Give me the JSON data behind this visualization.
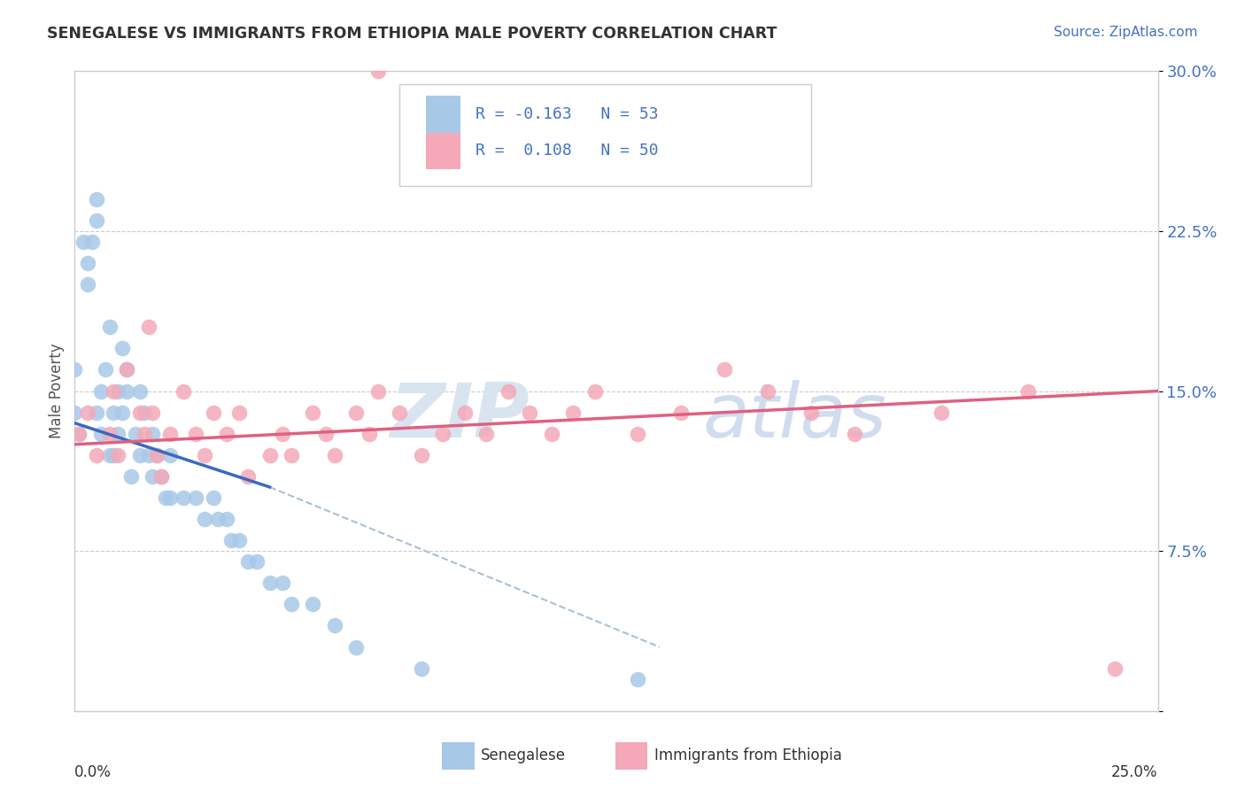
{
  "title": "SENEGALESE VS IMMIGRANTS FROM ETHIOPIA MALE POVERTY CORRELATION CHART",
  "source": "Source: ZipAtlas.com",
  "ylabel": "Male Poverty",
  "xmin": 0.0,
  "xmax": 25.0,
  "ymin": 0.0,
  "ymax": 30.0,
  "yticks": [
    0.0,
    7.5,
    15.0,
    22.5,
    30.0
  ],
  "ytick_labels": [
    "",
    "7.5%",
    "15.0%",
    "22.5%",
    "30.0%"
  ],
  "color_blue": "#a8c8e8",
  "color_pink": "#f4a8b8",
  "line_blue": "#3a6abf",
  "line_pink": "#e06080",
  "line_dashed_color": "#a8c0d8",
  "watermark_zip": "ZIP",
  "watermark_atlas": "atlas",
  "senegalese_x": [
    0.0,
    0.0,
    0.1,
    0.2,
    0.3,
    0.3,
    0.4,
    0.5,
    0.5,
    0.5,
    0.6,
    0.6,
    0.7,
    0.8,
    0.8,
    0.9,
    0.9,
    1.0,
    1.0,
    1.1,
    1.1,
    1.2,
    1.2,
    1.3,
    1.4,
    1.5,
    1.5,
    1.6,
    1.7,
    1.8,
    1.8,
    1.9,
    2.0,
    2.1,
    2.2,
    2.2,
    2.5,
    2.8,
    3.0,
    3.2,
    3.3,
    3.5,
    3.6,
    3.8,
    4.0,
    4.2,
    4.5,
    4.8,
    5.0,
    5.5,
    6.0,
    6.5,
    8.0,
    13.0
  ],
  "senegalese_y": [
    14.0,
    16.0,
    13.0,
    22.0,
    20.0,
    21.0,
    22.0,
    24.0,
    23.0,
    14.0,
    15.0,
    13.0,
    16.0,
    18.0,
    12.0,
    14.0,
    12.0,
    15.0,
    13.0,
    14.0,
    17.0,
    15.0,
    16.0,
    11.0,
    13.0,
    15.0,
    12.0,
    14.0,
    12.0,
    13.0,
    11.0,
    12.0,
    11.0,
    10.0,
    12.0,
    10.0,
    10.0,
    10.0,
    9.0,
    10.0,
    9.0,
    9.0,
    8.0,
    8.0,
    7.0,
    7.0,
    6.0,
    6.0,
    5.0,
    5.0,
    4.0,
    3.0,
    2.0,
    1.5
  ],
  "ethiopia_x": [
    7.0,
    0.1,
    0.3,
    0.5,
    0.8,
    0.9,
    1.0,
    1.2,
    1.5,
    1.6,
    1.7,
    1.8,
    1.9,
    2.0,
    2.2,
    2.5,
    2.8,
    3.0,
    3.2,
    3.5,
    3.8,
    4.0,
    4.5,
    4.8,
    5.0,
    5.5,
    5.8,
    6.0,
    6.5,
    6.8,
    7.0,
    7.5,
    8.0,
    8.5,
    9.0,
    9.5,
    10.0,
    10.5,
    11.0,
    11.5,
    12.0,
    13.0,
    14.0,
    15.0,
    16.0,
    17.0,
    18.0,
    20.0,
    22.0,
    24.0
  ],
  "ethiopia_y": [
    30.0,
    13.0,
    14.0,
    12.0,
    13.0,
    15.0,
    12.0,
    16.0,
    14.0,
    13.0,
    18.0,
    14.0,
    12.0,
    11.0,
    13.0,
    15.0,
    13.0,
    12.0,
    14.0,
    13.0,
    14.0,
    11.0,
    12.0,
    13.0,
    12.0,
    14.0,
    13.0,
    12.0,
    14.0,
    13.0,
    15.0,
    14.0,
    12.0,
    13.0,
    14.0,
    13.0,
    15.0,
    14.0,
    13.0,
    14.0,
    15.0,
    13.0,
    14.0,
    16.0,
    15.0,
    14.0,
    13.0,
    14.0,
    15.0,
    2.0
  ],
  "blue_line_x0": 0.0,
  "blue_line_x1": 4.5,
  "blue_line_y0": 13.5,
  "blue_line_y1": 10.5,
  "dash_line_x0": 4.5,
  "dash_line_x1": 13.5,
  "dash_line_y0": 10.5,
  "dash_line_y1": 3.0,
  "pink_line_x0": 0.0,
  "pink_line_x1": 25.0,
  "pink_line_y0": 12.5,
  "pink_line_y1": 15.0
}
